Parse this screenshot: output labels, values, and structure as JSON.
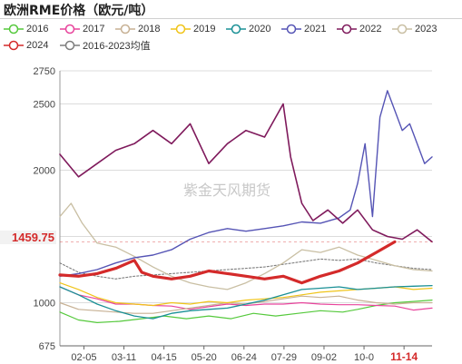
{
  "title": "欧洲RME价格（欧元/吨）",
  "watermark": "紫金天风期货",
  "chart_data": {
    "type": "line",
    "title": "欧洲RME价格（欧元/吨）",
    "xlabel": "",
    "ylabel": "",
    "ylim": [
      675,
      2750
    ],
    "yticks": [
      675,
      1000,
      1500,
      2000,
      2500,
      2750
    ],
    "x_tick_labels": [
      "02-05",
      "03-11",
      "04-15",
      "05-20",
      "06-24",
      "07-29",
      "09-02",
      "10-0",
      "11-14"
    ],
    "highlighted_x_label": "11-14",
    "y_marker": {
      "label": "1459.75",
      "value": 1459.75
    },
    "grid": true,
    "legend_position": "top",
    "series": [
      {
        "name": "2016",
        "color": "#55c93c",
        "width": 1.2,
        "points": [
          [
            0,
            930
          ],
          [
            0.05,
            870
          ],
          [
            0.1,
            850
          ],
          [
            0.16,
            860
          ],
          [
            0.22,
            880
          ],
          [
            0.28,
            900
          ],
          [
            0.34,
            880
          ],
          [
            0.4,
            900
          ],
          [
            0.46,
            880
          ],
          [
            0.52,
            920
          ],
          [
            0.58,
            900
          ],
          [
            0.64,
            920
          ],
          [
            0.7,
            940
          ],
          [
            0.76,
            930
          ],
          [
            0.8,
            950
          ],
          [
            0.85,
            980
          ],
          [
            0.9,
            1000
          ],
          [
            0.95,
            1010
          ],
          [
            1,
            1020
          ]
        ]
      },
      {
        "name": "2017",
        "color": "#e8449c",
        "width": 1.2,
        "points": [
          [
            0,
            1120
          ],
          [
            0.05,
            1060
          ],
          [
            0.1,
            1030
          ],
          [
            0.15,
            990
          ],
          [
            0.2,
            990
          ],
          [
            0.25,
            980
          ],
          [
            0.3,
            975
          ],
          [
            0.35,
            950
          ],
          [
            0.4,
            970
          ],
          [
            0.45,
            990
          ],
          [
            0.5,
            980
          ],
          [
            0.55,
            990
          ],
          [
            0.6,
            990
          ],
          [
            0.65,
            1000
          ],
          [
            0.7,
            990
          ],
          [
            0.75,
            985
          ],
          [
            0.8,
            985
          ],
          [
            0.85,
            980
          ],
          [
            0.9,
            975
          ],
          [
            0.95,
            945
          ],
          [
            1,
            960
          ]
        ]
      },
      {
        "name": "2018",
        "color": "#c7b194",
        "width": 1.2,
        "points": [
          [
            0,
            1000
          ],
          [
            0.05,
            950
          ],
          [
            0.1,
            940
          ],
          [
            0.15,
            930
          ],
          [
            0.2,
            920
          ],
          [
            0.25,
            920
          ],
          [
            0.3,
            940
          ],
          [
            0.35,
            960
          ],
          [
            0.4,
            980
          ],
          [
            0.45,
            1000
          ],
          [
            0.5,
            990
          ],
          [
            0.55,
            1010
          ],
          [
            0.6,
            1030
          ],
          [
            0.65,
            1050
          ],
          [
            0.7,
            1040
          ],
          [
            0.75,
            1050
          ],
          [
            0.8,
            1020
          ],
          [
            0.85,
            1000
          ],
          [
            0.9,
            990
          ],
          [
            0.95,
            1000
          ],
          [
            1,
            1000
          ]
        ]
      },
      {
        "name": "2019",
        "color": "#f0c419",
        "width": 1.2,
        "points": [
          [
            0,
            1150
          ],
          [
            0.05,
            1100
          ],
          [
            0.1,
            1040
          ],
          [
            0.15,
            1000
          ],
          [
            0.2,
            990
          ],
          [
            0.25,
            980
          ],
          [
            0.3,
            1000
          ],
          [
            0.35,
            990
          ],
          [
            0.4,
            1010
          ],
          [
            0.45,
            1000
          ],
          [
            0.5,
            1020
          ],
          [
            0.55,
            1030
          ],
          [
            0.6,
            1040
          ],
          [
            0.65,
            1060
          ],
          [
            0.7,
            1080
          ],
          [
            0.75,
            1090
          ],
          [
            0.8,
            1100
          ],
          [
            0.85,
            1110
          ],
          [
            0.9,
            1120
          ],
          [
            0.95,
            1100
          ],
          [
            1,
            1110
          ]
        ]
      },
      {
        "name": "2020",
        "color": "#1a9096",
        "width": 1.3,
        "points": [
          [
            0,
            1120
          ],
          [
            0.05,
            1060
          ],
          [
            0.1,
            990
          ],
          [
            0.15,
            940
          ],
          [
            0.2,
            900
          ],
          [
            0.25,
            880
          ],
          [
            0.3,
            920
          ],
          [
            0.35,
            940
          ],
          [
            0.4,
            950
          ],
          [
            0.45,
            960
          ],
          [
            0.5,
            990
          ],
          [
            0.55,
            1020
          ],
          [
            0.6,
            1060
          ],
          [
            0.65,
            1100
          ],
          [
            0.7,
            1110
          ],
          [
            0.75,
            1120
          ],
          [
            0.8,
            1100
          ],
          [
            0.85,
            1110
          ],
          [
            0.9,
            1120
          ],
          [
            0.95,
            1125
          ],
          [
            1,
            1130
          ]
        ]
      },
      {
        "name": "2021",
        "color": "#5554b5",
        "width": 1.4,
        "points": [
          [
            0,
            1200
          ],
          [
            0.05,
            1220
          ],
          [
            0.1,
            1250
          ],
          [
            0.15,
            1300
          ],
          [
            0.2,
            1340
          ],
          [
            0.25,
            1360
          ],
          [
            0.3,
            1400
          ],
          [
            0.35,
            1480
          ],
          [
            0.4,
            1530
          ],
          [
            0.45,
            1560
          ],
          [
            0.5,
            1540
          ],
          [
            0.55,
            1560
          ],
          [
            0.6,
            1580
          ],
          [
            0.65,
            1610
          ],
          [
            0.7,
            1600
          ],
          [
            0.75,
            1640
          ],
          [
            0.78,
            1700
          ],
          [
            0.8,
            1900
          ],
          [
            0.82,
            2200
          ],
          [
            0.84,
            1650
          ],
          [
            0.86,
            2400
          ],
          [
            0.88,
            2600
          ],
          [
            0.9,
            2450
          ],
          [
            0.92,
            2300
          ],
          [
            0.94,
            2350
          ],
          [
            0.96,
            2200
          ],
          [
            0.98,
            2050
          ],
          [
            1,
            2100
          ]
        ]
      },
      {
        "name": "2022",
        "color": "#7f1a5c",
        "width": 1.6,
        "points": [
          [
            0,
            2120
          ],
          [
            0.05,
            1950
          ],
          [
            0.1,
            2050
          ],
          [
            0.15,
            2150
          ],
          [
            0.2,
            2200
          ],
          [
            0.25,
            2300
          ],
          [
            0.3,
            2200
          ],
          [
            0.35,
            2350
          ],
          [
            0.4,
            2050
          ],
          [
            0.45,
            2200
          ],
          [
            0.5,
            2300
          ],
          [
            0.55,
            2250
          ],
          [
            0.6,
            2500
          ],
          [
            0.62,
            2100
          ],
          [
            0.65,
            1750
          ],
          [
            0.68,
            1620
          ],
          [
            0.72,
            1700
          ],
          [
            0.76,
            1600
          ],
          [
            0.8,
            1700
          ],
          [
            0.84,
            1550
          ],
          [
            0.88,
            1500
          ],
          [
            0.92,
            1480
          ],
          [
            0.96,
            1550
          ],
          [
            1,
            1460
          ]
        ]
      },
      {
        "name": "2023",
        "color": "#c9bfa3",
        "width": 1.3,
        "points": [
          [
            0,
            1650
          ],
          [
            0.03,
            1750
          ],
          [
            0.06,
            1600
          ],
          [
            0.1,
            1450
          ],
          [
            0.15,
            1420
          ],
          [
            0.2,
            1350
          ],
          [
            0.25,
            1270
          ],
          [
            0.3,
            1200
          ],
          [
            0.35,
            1150
          ],
          [
            0.4,
            1120
          ],
          [
            0.45,
            1100
          ],
          [
            0.5,
            1150
          ],
          [
            0.55,
            1220
          ],
          [
            0.6,
            1300
          ],
          [
            0.65,
            1400
          ],
          [
            0.7,
            1380
          ],
          [
            0.75,
            1420
          ],
          [
            0.8,
            1360
          ],
          [
            0.85,
            1320
          ],
          [
            0.9,
            1280
          ],
          [
            0.95,
            1250
          ],
          [
            1,
            1240
          ]
        ]
      },
      {
        "name": "2024",
        "color": "#d42a2a",
        "width": 3.2,
        "points": [
          [
            0,
            1210
          ],
          [
            0.05,
            1200
          ],
          [
            0.1,
            1220
          ],
          [
            0.15,
            1260
          ],
          [
            0.2,
            1320
          ],
          [
            0.22,
            1230
          ],
          [
            0.25,
            1200
          ],
          [
            0.3,
            1180
          ],
          [
            0.35,
            1200
          ],
          [
            0.4,
            1240
          ],
          [
            0.45,
            1220
          ],
          [
            0.5,
            1200
          ],
          [
            0.55,
            1180
          ],
          [
            0.6,
            1200
          ],
          [
            0.65,
            1150
          ],
          [
            0.7,
            1200
          ],
          [
            0.75,
            1240
          ],
          [
            0.8,
            1300
          ],
          [
            0.85,
            1380
          ],
          [
            0.9,
            1460
          ]
        ]
      },
      {
        "name": "2016-2023均值",
        "color": "#7d7d7d",
        "width": 1.1,
        "dash": "2,2",
        "points": [
          [
            0,
            1300
          ],
          [
            0.05,
            1230
          ],
          [
            0.1,
            1200
          ],
          [
            0.15,
            1180
          ],
          [
            0.2,
            1200
          ],
          [
            0.25,
            1210
          ],
          [
            0.3,
            1220
          ],
          [
            0.35,
            1230
          ],
          [
            0.4,
            1240
          ],
          [
            0.45,
            1250
          ],
          [
            0.5,
            1260
          ],
          [
            0.55,
            1270
          ],
          [
            0.6,
            1290
          ],
          [
            0.65,
            1310
          ],
          [
            0.7,
            1330
          ],
          [
            0.75,
            1320
          ],
          [
            0.8,
            1330
          ],
          [
            0.85,
            1300
          ],
          [
            0.9,
            1280
          ],
          [
            0.95,
            1260
          ],
          [
            1,
            1250
          ]
        ]
      }
    ]
  }
}
